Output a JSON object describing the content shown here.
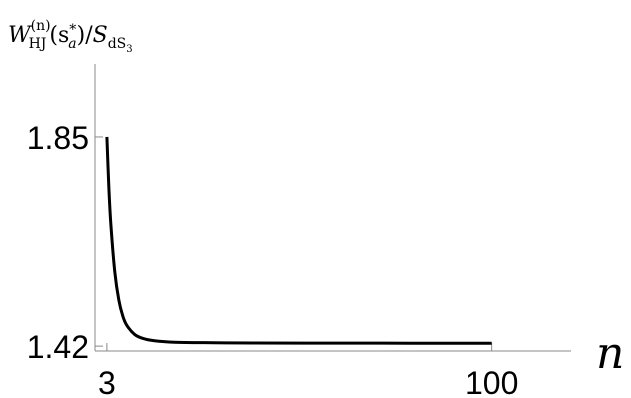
{
  "chart_data": {
    "type": "line",
    "ylabel": {
      "base": "W",
      "sup": "(n)",
      "sub": "HJ",
      "args": "(s",
      "args_sub": "a",
      "args_sup": "*",
      "args_close": ")/",
      "denom_base": "S",
      "denom_sub": "dS",
      "denom_subsub": "3"
    },
    "xlabel": "n",
    "x_ticks": [
      {
        "value": 3,
        "label": "3"
      },
      {
        "value": 100,
        "label": "100"
      }
    ],
    "y_ticks": [
      {
        "value": 1.85,
        "label": "1.85"
      },
      {
        "value": 1.42,
        "label": "1.42"
      }
    ],
    "xlim": [
      0,
      120
    ],
    "ylim": [
      1.41,
      2.0
    ],
    "series": [
      {
        "color": "#000000",
        "x": [
          3,
          3.5,
          4,
          5,
          6,
          7,
          8,
          10,
          12,
          15,
          20,
          30,
          40,
          60,
          80,
          100
        ],
        "y": [
          1.85,
          1.745,
          1.67,
          1.572,
          1.515,
          1.482,
          1.463,
          1.444,
          1.436,
          1.431,
          1.428,
          1.427,
          1.4265,
          1.4262,
          1.426,
          1.426
        ]
      }
    ]
  }
}
